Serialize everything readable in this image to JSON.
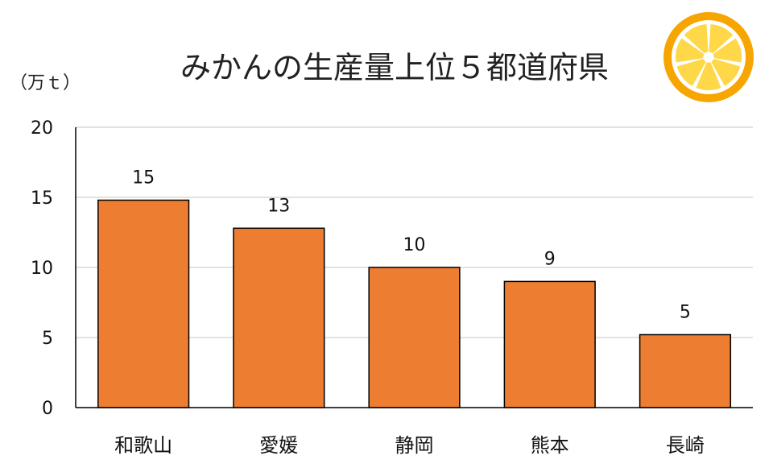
{
  "chart_data": {
    "type": "bar",
    "title": "みかんの生産量上位５都道府県",
    "ylabel": "（万ｔ）",
    "xlabel": "",
    "categories": [
      "和歌山",
      "愛媛",
      "静岡",
      "熊本",
      "長崎"
    ],
    "values": [
      14.8,
      12.8,
      10.0,
      9.0,
      5.2
    ],
    "data_labels": [
      "15",
      "13",
      "10",
      "9",
      "5"
    ],
    "ylim": [
      0,
      20
    ],
    "yticks": [
      0,
      5,
      10,
      15,
      20
    ],
    "ytick_labels": [
      "0",
      "5",
      "10",
      "15",
      "20"
    ],
    "grid": true,
    "legend": "none",
    "bar_color": "#ED7D31",
    "bar_edge_color": "#000000",
    "grid_color": "#D9D9D9"
  },
  "decoration": {
    "icon": "orange-slice-icon",
    "orange_peel_color": "#F7A500",
    "orange_flesh_color": "#FFD84A",
    "orange_pith_color": "#FFFFFF"
  }
}
